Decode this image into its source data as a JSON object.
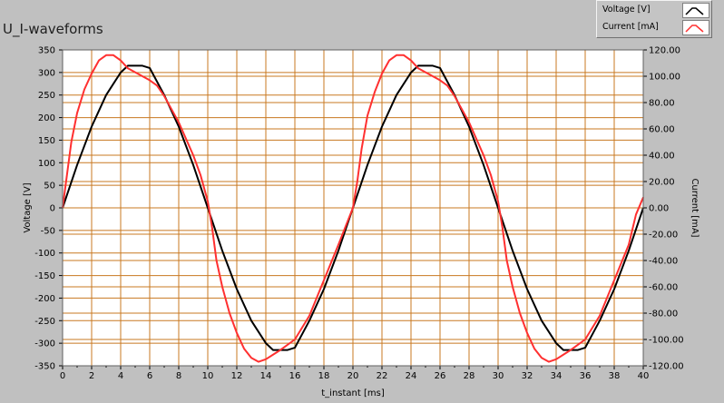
{
  "window": {
    "title": "U_I-waveforms"
  },
  "legend": [
    {
      "label": "Voltage [V]",
      "color": "#000000",
      "icon": "line-sample-icon"
    },
    {
      "label": "Current [mA]",
      "color": "#ff3030",
      "icon": "line-sample-icon"
    }
  ],
  "colors": {
    "plot_bg": "#ffffff",
    "grid": "#c87820",
    "panel": "#c0c0c0"
  },
  "chart_data": {
    "type": "line",
    "title": "U_I-waveforms",
    "xlabel": "t_instant [ms]",
    "ylabel": "Voltage [V]",
    "y2label": "Current [mA]",
    "xlim": [
      0,
      40
    ],
    "ylim": [
      -350,
      350
    ],
    "y2lim": [
      -120,
      120
    ],
    "grid": true,
    "legend_position": "top-right",
    "x_ticks": [
      "0",
      "2",
      "4",
      "6",
      "8",
      "10",
      "12",
      "14",
      "16",
      "18",
      "20",
      "22",
      "24",
      "26",
      "28",
      "30",
      "32",
      "34",
      "36",
      "38",
      "40"
    ],
    "y_ticks": [
      "350",
      "300",
      "250",
      "200",
      "150",
      "100",
      "50",
      "0",
      "-50",
      "-100",
      "-150",
      "-200",
      "-250",
      "-300",
      "-350"
    ],
    "y2_ticks": [
      "120.00",
      "100.00",
      "80.00",
      "60.00",
      "40.00",
      "20.00",
      "0.00",
      "-20.00",
      "-40.00",
      "-60.00",
      "-80.00",
      "-100.00",
      "-120.00"
    ],
    "series": [
      {
        "name": "Voltage [V]",
        "axis": "left",
        "color": "#000000",
        "x": [
          0,
          1,
          2,
          3,
          4,
          4.5,
          5,
          5.5,
          6,
          7,
          8,
          9,
          10,
          11,
          12,
          13,
          14,
          14.5,
          15,
          15.5,
          16,
          17,
          18,
          19,
          20,
          21,
          22,
          23,
          24,
          24.5,
          25,
          25.5,
          26,
          27,
          28,
          29,
          30,
          31,
          32,
          33,
          34,
          34.5,
          35,
          35.5,
          36,
          37,
          38,
          39,
          40
        ],
        "y": [
          0,
          95,
          180,
          250,
          300,
          315,
          315,
          315,
          310,
          250,
          180,
          95,
          0,
          -95,
          -180,
          -250,
          -300,
          -315,
          -315,
          -315,
          -310,
          -250,
          -180,
          -95,
          0,
          95,
          180,
          250,
          300,
          315,
          315,
          315,
          310,
          250,
          180,
          95,
          0,
          -95,
          -180,
          -250,
          -300,
          -315,
          -315,
          -315,
          -310,
          -250,
          -180,
          -95,
          0
        ]
      },
      {
        "name": "Current [mA]",
        "axis": "right",
        "color": "#ff3030",
        "x": [
          0,
          0.3,
          0.6,
          1,
          1.5,
          2,
          2.5,
          3,
          3.5,
          4,
          4.5,
          5,
          5.5,
          6,
          6.5,
          7,
          8,
          9,
          9.5,
          10,
          10.3,
          10.6,
          11,
          11.5,
          12,
          12.5,
          13,
          13.5,
          14,
          15,
          16,
          17,
          18,
          19,
          20,
          20.3,
          20.6,
          21,
          21.5,
          22,
          22.5,
          23,
          23.5,
          24,
          24.5,
          25,
          25.5,
          26,
          26.5,
          27,
          28,
          29,
          29.5,
          30,
          30.3,
          30.6,
          31,
          31.5,
          32,
          32.5,
          33,
          33.5,
          34,
          35,
          36,
          37,
          38,
          39,
          39.5,
          40
        ],
        "y": [
          0,
          25,
          50,
          72,
          90,
          102,
          112,
          116,
          116,
          112,
          106,
          103,
          100,
          97,
          93,
          85,
          65,
          40,
          25,
          5,
          -15,
          -40,
          -60,
          -80,
          -95,
          -107,
          -114,
          -117,
          -115,
          -108,
          -100,
          -82,
          -55,
          -28,
          0,
          20,
          45,
          70,
          88,
          102,
          112,
          116,
          116,
          112,
          106,
          103,
          100,
          97,
          93,
          85,
          65,
          40,
          25,
          5,
          -15,
          -40,
          -60,
          -80,
          -95,
          -107,
          -114,
          -117,
          -115,
          -108,
          -100,
          -82,
          -55,
          -28,
          -5,
          8
        ]
      }
    ]
  }
}
